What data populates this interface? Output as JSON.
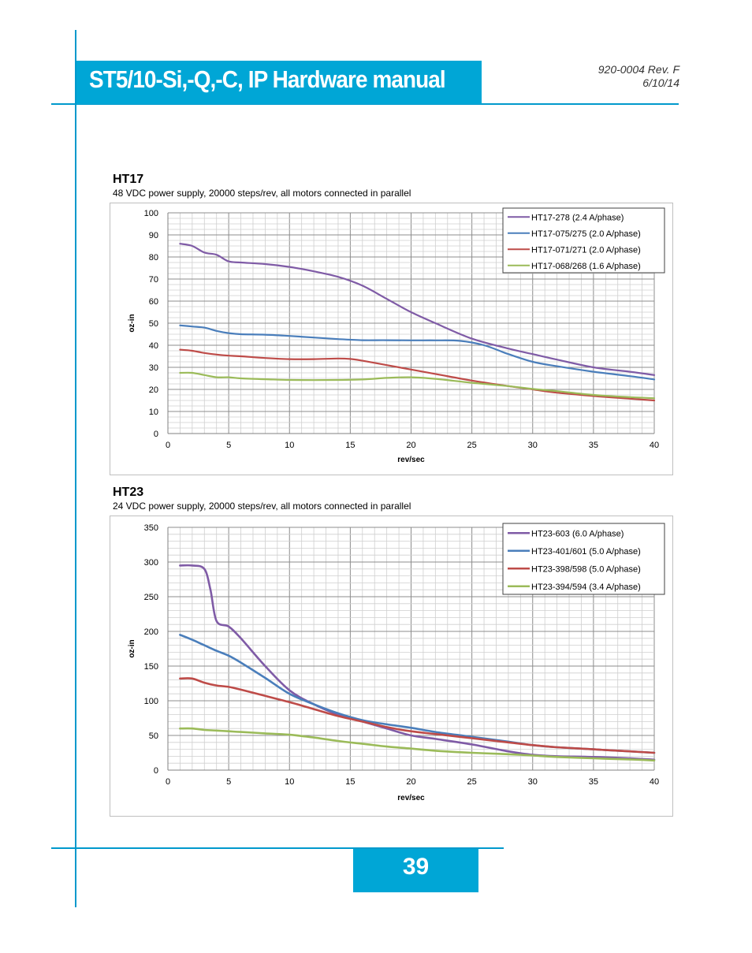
{
  "header": {
    "title": "ST5/10-Si,-Q,-C, IP Hardware manual",
    "doc_number": "920-0004 Rev. F",
    "date": "6/10/14"
  },
  "footer": {
    "page_number": "39"
  },
  "charts": {
    "ht17": {
      "heading": "HT17",
      "subtitle": "48 VDC power supply, 20000 steps/rev, all motors connected in parallel"
    },
    "ht23": {
      "heading": "HT23",
      "subtitle": "24 VDC power supply, 20000 steps/rev, all motors connected in parallel"
    }
  },
  "chart_data": [
    {
      "type": "line",
      "title": "HT17",
      "xlabel": "rev/sec",
      "ylabel": "oz-in",
      "xlim": [
        0,
        40
      ],
      "ylim": [
        0,
        100
      ],
      "xticks": [
        0,
        5,
        10,
        15,
        20,
        25,
        30,
        35,
        40
      ],
      "yticks": [
        0,
        10,
        20,
        30,
        40,
        50,
        60,
        70,
        80,
        90,
        100
      ],
      "grid": true,
      "legend": "top-right",
      "series": [
        {
          "name": "HT17-278 (2.4 A/phase)",
          "color": "#7f5ba6",
          "x": [
            1,
            2,
            3,
            4,
            5,
            6,
            8,
            10,
            12,
            14,
            16,
            18,
            20,
            22,
            25,
            28,
            30,
            32,
            35,
            38,
            40
          ],
          "y": [
            86,
            85,
            82,
            81,
            78,
            77.5,
            76.8,
            75.5,
            73.5,
            71,
            67,
            61,
            55,
            50,
            43,
            38.5,
            36,
            33.5,
            30,
            28,
            26.5
          ]
        },
        {
          "name": "HT17-075/275 (2.0 A/phase)",
          "color": "#4a7ebb",
          "x": [
            1,
            2,
            3,
            4,
            5,
            6,
            8,
            10,
            12,
            14,
            16,
            18,
            20,
            22,
            24,
            26,
            28,
            30,
            32,
            35,
            38,
            40
          ],
          "y": [
            49,
            48.5,
            48,
            46.5,
            45.5,
            45,
            44.8,
            44.2,
            43.5,
            42.8,
            42.3,
            42.3,
            42.2,
            42.2,
            42,
            40,
            36,
            32.5,
            30.5,
            28,
            26,
            24.5
          ]
        },
        {
          "name": "HT17-071/271 (2.0 A/phase)",
          "color": "#be4b48",
          "x": [
            1,
            2,
            3,
            4,
            5,
            6,
            8,
            10,
            12,
            14,
            15,
            16,
            18,
            20,
            22,
            25,
            28,
            30,
            32,
            35,
            38,
            40
          ],
          "y": [
            38,
            37.5,
            36.5,
            35.8,
            35.3,
            35,
            34.2,
            33.7,
            33.7,
            34,
            33.8,
            33,
            31,
            29,
            27,
            24,
            21.5,
            20,
            18.5,
            17,
            15.8,
            15
          ]
        },
        {
          "name": "HT17-068/268 (1.6 A/phase)",
          "color": "#9bbb59",
          "x": [
            1,
            2,
            3,
            4,
            5,
            6,
            8,
            10,
            12,
            14,
            16,
            18,
            20,
            22,
            25,
            28,
            30,
            32,
            35,
            38,
            40
          ],
          "y": [
            27.5,
            27.5,
            26.5,
            25.5,
            25.5,
            25,
            24.6,
            24.3,
            24.2,
            24.3,
            24.5,
            25.2,
            25.5,
            24.8,
            23,
            21.5,
            20.2,
            19.2,
            17.5,
            16.5,
            16
          ]
        }
      ]
    },
    {
      "type": "line",
      "title": "HT23",
      "xlabel": "rev/sec",
      "ylabel": "oz-in",
      "xlim": [
        0,
        40
      ],
      "ylim": [
        0,
        350
      ],
      "xticks": [
        0,
        5,
        10,
        15,
        20,
        25,
        30,
        35,
        40
      ],
      "yticks": [
        0,
        50,
        100,
        150,
        200,
        250,
        300,
        350
      ],
      "grid": true,
      "legend": "top-right",
      "series": [
        {
          "name": "HT23-603 (6.0 A/phase)",
          "color": "#7f5ba6",
          "x": [
            1,
            2,
            3,
            3.5,
            4,
            5,
            6,
            8,
            10,
            12,
            14,
            16,
            18,
            20,
            22,
            25,
            28,
            30,
            32,
            35,
            38,
            40
          ],
          "y": [
            295,
            295,
            290,
            260,
            215,
            207,
            190,
            150,
            115,
            95,
            80,
            70,
            60,
            50,
            45,
            37,
            27,
            22,
            20,
            19,
            17,
            15
          ]
        },
        {
          "name": "HT23-401/601 (5.0 A/phase)",
          "color": "#4a7ebb",
          "x": [
            1,
            2,
            3,
            4,
            5,
            6,
            8,
            10,
            12,
            14,
            16,
            18,
            20,
            22,
            25,
            28,
            30,
            32,
            35,
            38,
            40
          ],
          "y": [
            195,
            188,
            180,
            172,
            165,
            155,
            133,
            110,
            95,
            82,
            72,
            66,
            61,
            55,
            48,
            41,
            36,
            33,
            30,
            27,
            25
          ]
        },
        {
          "name": "HT23-398/598 (5.0 A/phase)",
          "color": "#be4b48",
          "x": [
            1,
            2,
            3,
            4,
            5,
            6,
            8,
            10,
            12,
            14,
            16,
            18,
            20,
            22,
            25,
            28,
            30,
            32,
            35,
            38,
            40
          ],
          "y": [
            132,
            132,
            126,
            122,
            120,
            116,
            107,
            98,
            88,
            78,
            70,
            62,
            56,
            52,
            46,
            40,
            36,
            33,
            30,
            27,
            25
          ]
        },
        {
          "name": "HT23-394/594 (3.4 A/phase)",
          "color": "#9bbb59",
          "x": [
            1,
            2,
            3,
            4,
            5,
            6,
            8,
            10,
            12,
            14,
            16,
            18,
            20,
            22,
            25,
            28,
            30,
            32,
            35,
            38,
            40
          ],
          "y": [
            60,
            60,
            58,
            57,
            56,
            55,
            53,
            51,
            47,
            42,
            38,
            34,
            31,
            28,
            25,
            23,
            21,
            19,
            17,
            15.5,
            14
          ]
        }
      ]
    }
  ]
}
